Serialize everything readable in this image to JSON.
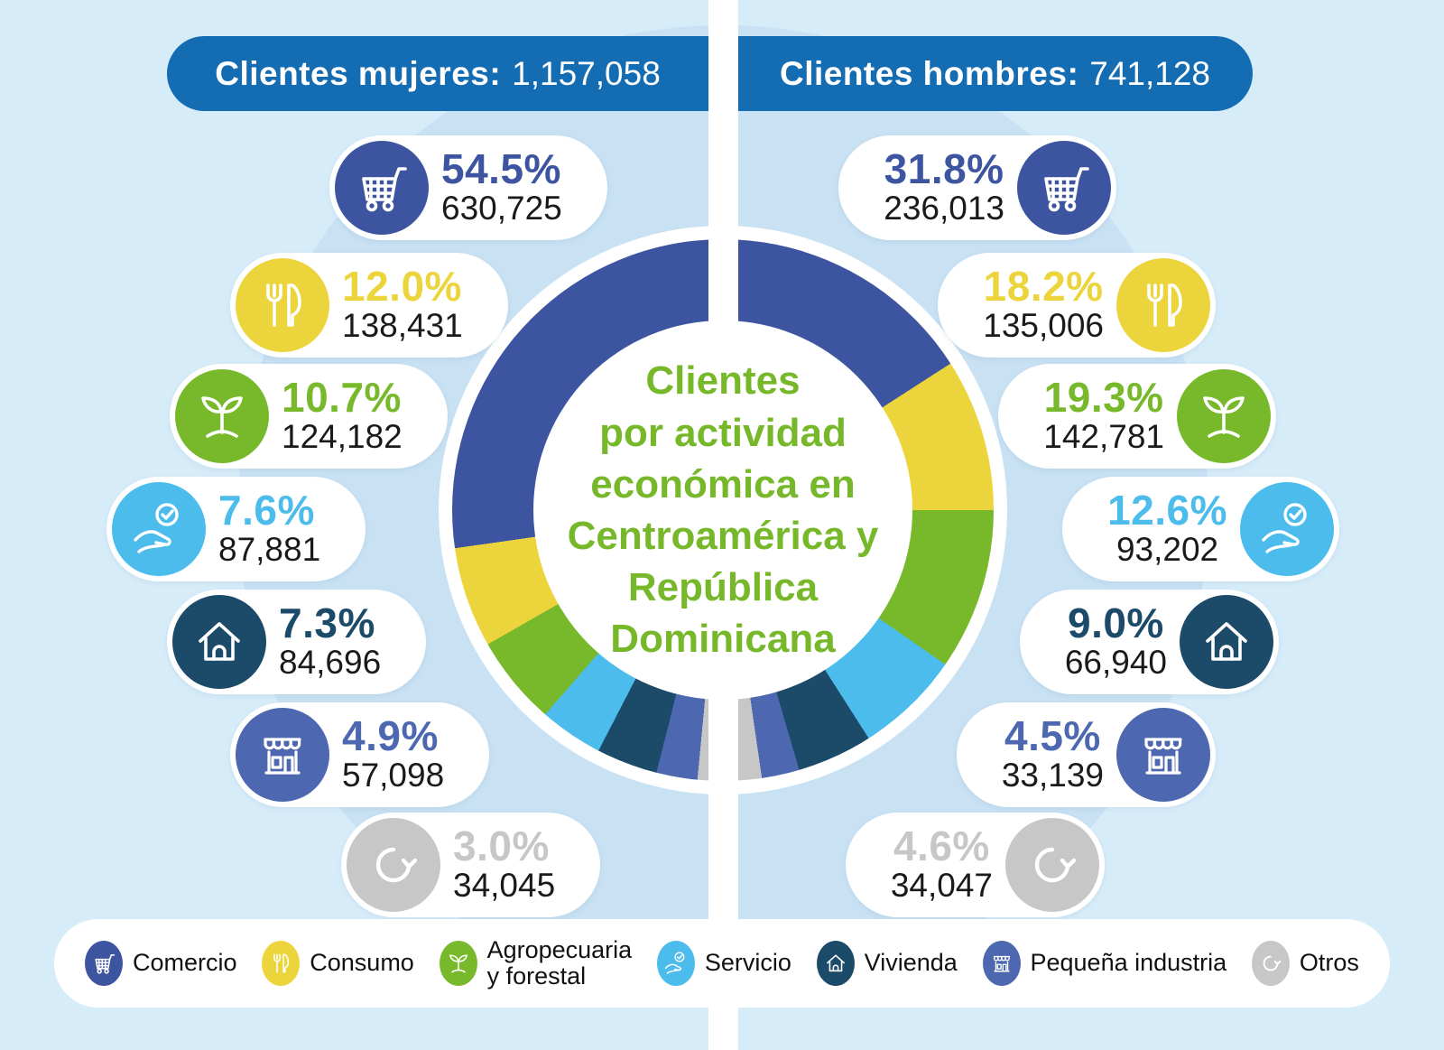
{
  "chart_data": {
    "type": "pie",
    "title": "Clientes por actividad económica en Centroamérica y República Dominicana",
    "legend_position": "bottom",
    "categories": [
      "Comercio",
      "Consumo",
      "Agropecuaria y forestal",
      "Servicio",
      "Vivienda",
      "Pequeña industria",
      "Otros"
    ],
    "series": [
      {
        "name": "Clientes mujeres",
        "total": 1157058,
        "values": [
          630725,
          138431,
          124182,
          87881,
          84696,
          57098,
          34045
        ],
        "pct": [
          54.5,
          12.0,
          10.7,
          7.6,
          7.3,
          4.9,
          3.0
        ]
      },
      {
        "name": "Clientes hombres",
        "total": 741128,
        "values": [
          236013,
          135006,
          142781,
          93202,
          66940,
          33139,
          34047
        ],
        "pct": [
          31.8,
          18.2,
          19.3,
          12.6,
          9.0,
          4.5,
          4.6
        ]
      }
    ]
  },
  "header": {
    "women_label": "Clientes mujeres:",
    "women_value": "1,157,058",
    "men_label": "Clientes hombres:",
    "men_value": "741,128"
  },
  "center_title": "Clientes\npor actividad\neconómica en\nCentroamérica y\nRepública\nDominicana",
  "categories": [
    {
      "id": "comercio",
      "legend_label": "Comercio",
      "icon": "cart-icon",
      "color": "#3d55a0",
      "women_pct": "54.5%",
      "women_count": "630,725",
      "men_pct": "31.8%",
      "men_count": "236,013"
    },
    {
      "id": "consumo",
      "legend_label": "Consumo",
      "icon": "fork-knife-icon",
      "color": "#ecd53c",
      "women_pct": "12.0%",
      "women_count": "138,431",
      "men_pct": "18.2%",
      "men_count": "135,006"
    },
    {
      "id": "agropecuaria",
      "legend_label": "Agropecuaria\ny forestal",
      "icon": "sprout-icon",
      "color": "#78b92c",
      "women_pct": "10.7%",
      "women_count": "124,182",
      "men_pct": "19.3%",
      "men_count": "142,781"
    },
    {
      "id": "servicio",
      "legend_label": "Servicio",
      "icon": "hand-check-icon",
      "color": "#4cbcec",
      "women_pct": "7.6%",
      "women_count": "87,881",
      "men_pct": "12.6%",
      "men_count": "93,202"
    },
    {
      "id": "vivienda",
      "legend_label": "Vivienda",
      "icon": "house-icon",
      "color": "#1c4a69",
      "women_pct": "7.3%",
      "women_count": "84,696",
      "men_pct": "9.0%",
      "men_count": "66,940"
    },
    {
      "id": "pequena-industria",
      "legend_label": "Pequeña industria",
      "icon": "storefront-icon",
      "color": "#4d68b1",
      "women_pct": "4.9%",
      "women_count": "57,098",
      "men_pct": "4.5%",
      "men_count": "33,139"
    },
    {
      "id": "otros",
      "legend_label": "Otros",
      "icon": "refresh-arrow-icon",
      "color": "#c7c7c7",
      "women_pct": "3.0%",
      "women_count": "34,045",
      "men_pct": "4.6%",
      "men_count": "34,047"
    }
  ],
  "colors": {
    "background": "#d7ecf9",
    "halo": "#c8e1f3",
    "header_blue": "#146cb3",
    "title_green": "#76b82a",
    "count_text": "#1a1a1a",
    "pill_white": "#ffffff"
  }
}
